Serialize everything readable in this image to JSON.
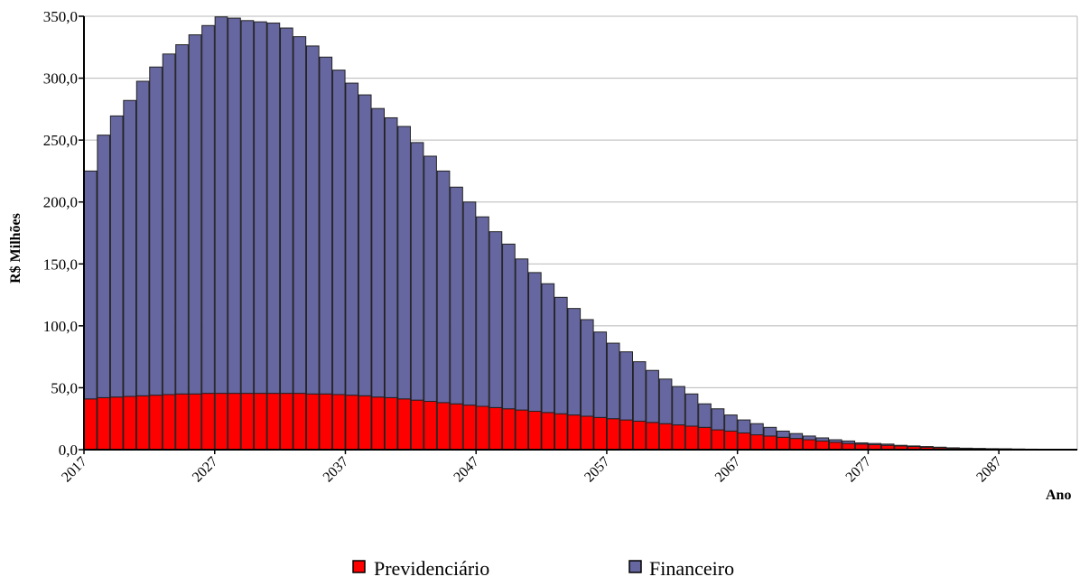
{
  "chart_data": {
    "type": "bar",
    "stacked": true,
    "title": "",
    "xlabel": "Ano",
    "ylabel": "R$ Milhões",
    "ylim": [
      0,
      350
    ],
    "y_ticks": [
      "0,0",
      "50,0",
      "100,0",
      "150,0",
      "200,0",
      "250,0",
      "300,0",
      "350,0"
    ],
    "x_tick_labels": [
      "2017",
      "2027",
      "2037",
      "2047",
      "2057",
      "2067",
      "2077",
      "2087"
    ],
    "grid": "horizontal",
    "legend_position": "bottom",
    "colors": {
      "previdenciario": "#ff0000",
      "financeiro": "#6666a0",
      "bar_edge": "#222222"
    },
    "x": [
      2017,
      2018,
      2019,
      2020,
      2021,
      2022,
      2023,
      2024,
      2025,
      2026,
      2027,
      2028,
      2029,
      2030,
      2031,
      2032,
      2033,
      2034,
      2035,
      2036,
      2037,
      2038,
      2039,
      2040,
      2041,
      2042,
      2043,
      2044,
      2045,
      2046,
      2047,
      2048,
      2049,
      2050,
      2051,
      2052,
      2053,
      2054,
      2055,
      2056,
      2057,
      2058,
      2059,
      2060,
      2061,
      2062,
      2063,
      2064,
      2065,
      2066,
      2067,
      2068,
      2069,
      2070,
      2071,
      2072,
      2073,
      2074,
      2075,
      2076,
      2077,
      2078,
      2079,
      2080,
      2081,
      2082,
      2083,
      2084,
      2085,
      2086,
      2087,
      2088,
      2089,
      2090,
      2091,
      2092
    ],
    "series": [
      {
        "name": "Previdenciário",
        "values": [
          41,
          42,
          42.5,
          43,
          43.5,
          44,
          44.5,
          45,
          45,
          45.5,
          45.5,
          45.5,
          45.5,
          45.5,
          45.5,
          45.5,
          45.5,
          45,
          45,
          44.5,
          44,
          43.5,
          42.5,
          42,
          41,
          40,
          39,
          38,
          37,
          36,
          35,
          34,
          33,
          32,
          31,
          30,
          29,
          28,
          27,
          26,
          25,
          24,
          23,
          22,
          21,
          20,
          19,
          18,
          16,
          15,
          13.5,
          12,
          11,
          10,
          9,
          8,
          7,
          6,
          5,
          4.5,
          4,
          3.5,
          3,
          2.5,
          2,
          1.5,
          1.2,
          1,
          0.8,
          0.6,
          0.5,
          0.4,
          0.3,
          0.2,
          0.2,
          0.1
        ]
      },
      {
        "name": "Financeiro",
        "values": [
          184,
          212,
          227,
          239,
          254,
          265,
          275,
          282,
          290,
          297,
          304,
          303,
          301,
          300,
          299,
          295,
          288,
          281,
          272,
          262,
          252,
          243,
          233,
          226,
          220,
          208,
          198,
          187,
          175,
          164,
          153,
          142,
          133,
          122,
          112,
          104,
          94,
          86,
          78,
          69,
          61,
          55,
          48,
          42,
          36,
          31,
          26,
          19,
          17,
          13,
          10.5,
          9,
          7,
          5,
          4,
          3,
          2.5,
          2,
          2,
          1,
          1,
          1,
          0.5,
          0.5,
          0.5,
          0.5,
          0.3,
          0.2,
          0.2,
          0.2,
          0.2,
          0.1,
          0.1,
          0.1,
          0,
          0.1
        ]
      }
    ]
  }
}
